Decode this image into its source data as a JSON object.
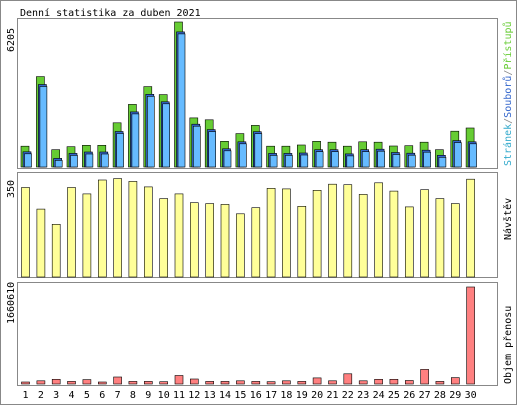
{
  "chart_data": [
    {
      "type": "bar",
      "title": "Denní statistika za duben 2021",
      "ytick": "6205",
      "ylim": [
        0,
        6205
      ],
      "legend": [
        {
          "label": "Přístupů",
          "color": "#66cc33"
        },
        {
          "label": "/",
          "color": "#888888"
        },
        {
          "label": "Souborů",
          "color": "#3366cc"
        },
        {
          "label": "/",
          "color": "#888888"
        },
        {
          "label": "Stránek",
          "color": "#33aacc"
        }
      ],
      "categories": [
        "1",
        "2",
        "3",
        "4",
        "5",
        "6",
        "7",
        "8",
        "9",
        "10",
        "11",
        "12",
        "13",
        "14",
        "15",
        "16",
        "17",
        "18",
        "19",
        "20",
        "21",
        "22",
        "23",
        "24",
        "25",
        "26",
        "27",
        "28",
        "29",
        "30"
      ],
      "series": [
        {
          "name": "Přístupů",
          "color": "#66cc33",
          "values": [
            890,
            3870,
            740,
            870,
            930,
            930,
            1890,
            2680,
            3440,
            3100,
            6205,
            2100,
            2020,
            1100,
            1430,
            1780,
            890,
            890,
            940,
            1100,
            1060,
            890,
            1080,
            1060,
            900,
            910,
            1060,
            740,
            1530,
            1670
          ]
        },
        {
          "name": "Souborů",
          "color": "#3366cc",
          "values": [
            650,
            3530,
            370,
            580,
            640,
            640,
            1520,
            2360,
            3110,
            2790,
            5780,
            1830,
            1600,
            780,
            1080,
            1510,
            580,
            580,
            600,
            740,
            740,
            560,
            740,
            760,
            620,
            590,
            720,
            500,
            1130,
            1080
          ]
        },
        {
          "name": "Stránek",
          "color": "#66bbff",
          "values": [
            650,
            3530,
            370,
            580,
            640,
            640,
            1520,
            2360,
            3110,
            2790,
            5780,
            1830,
            1600,
            780,
            1080,
            1510,
            580,
            580,
            600,
            740,
            740,
            560,
            740,
            760,
            620,
            590,
            720,
            500,
            1130,
            1080
          ]
        }
      ]
    },
    {
      "type": "bar",
      "ytick": "350",
      "ylim": [
        0,
        350
      ],
      "legend": [
        {
          "label": "Návštěv",
          "color": "#cccc66"
        }
      ],
      "categories": [
        "1",
        "2",
        "3",
        "4",
        "5",
        "6",
        "7",
        "8",
        "9",
        "10",
        "11",
        "12",
        "13",
        "14",
        "15",
        "16",
        "17",
        "18",
        "19",
        "20",
        "21",
        "22",
        "23",
        "24",
        "25",
        "26",
        "27",
        "28",
        "29",
        "30"
      ],
      "series": [
        {
          "name": "Návštěv",
          "color": "#ffff99",
          "values": [
            323,
            245,
            190,
            323,
            300,
            350,
            355,
            345,
            325,
            283,
            300,
            268,
            265,
            262,
            228,
            250,
            320,
            318,
            255,
            313,
            335,
            333,
            298,
            340,
            310,
            253,
            315,
            283,
            265,
            353
          ]
        }
      ]
    },
    {
      "type": "bar",
      "ytick": "1660610",
      "ylim": [
        0,
        1660610
      ],
      "legend": [
        {
          "label": "Objem přenosu",
          "color": "#ff6666"
        }
      ],
      "categories": [
        "1",
        "2",
        "3",
        "4",
        "5",
        "6",
        "7",
        "8",
        "9",
        "10",
        "11",
        "12",
        "13",
        "14",
        "15",
        "16",
        "17",
        "18",
        "19",
        "20",
        "21",
        "22",
        "23",
        "24",
        "25",
        "26",
        "27",
        "28",
        "29",
        "30"
      ],
      "series": [
        {
          "name": "Objem přenosu",
          "color": "#ff8080",
          "values": [
            30000,
            55000,
            80000,
            45000,
            75000,
            35000,
            120000,
            45000,
            45000,
            40000,
            145000,
            85000,
            45000,
            45000,
            55000,
            45000,
            40000,
            55000,
            45000,
            105000,
            55000,
            175000,
            55000,
            80000,
            80000,
            60000,
            250000,
            45000,
            110000,
            1660610
          ]
        }
      ]
    }
  ],
  "weekend_days": [
    "3",
    "4",
    "10",
    "11",
    "17",
    "18",
    "24",
    "25"
  ],
  "colors": {
    "background": "#ffffff",
    "frame": "#888888",
    "label_weekday": "#000000",
    "label_weekend": "#66aa22"
  }
}
